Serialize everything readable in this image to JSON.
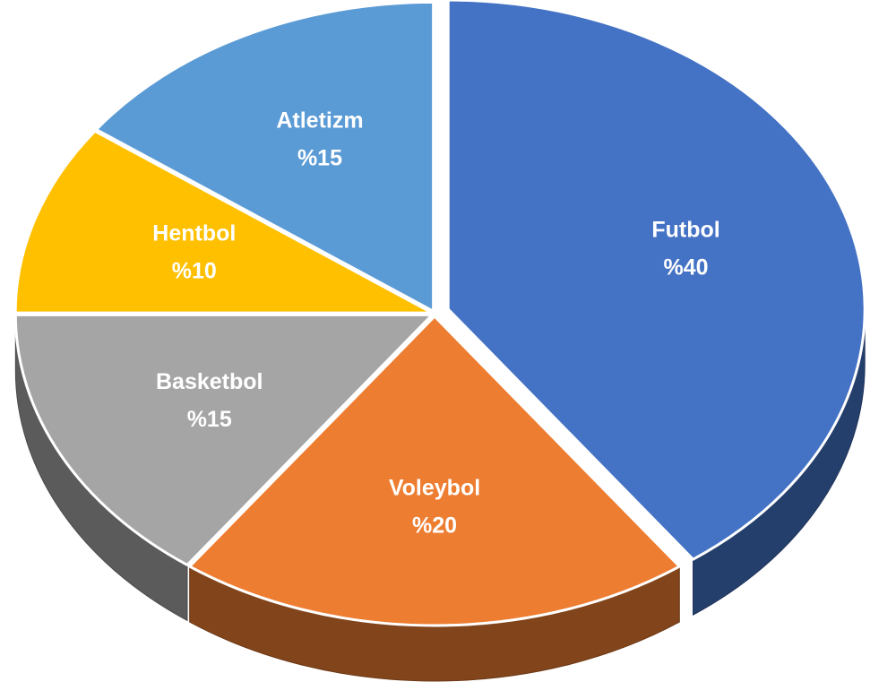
{
  "chart_data": {
    "type": "pie",
    "categories": [
      "Futbol",
      "Voleybol",
      "Basketbol",
      "Hentbol",
      "Atletizm"
    ],
    "values": [
      40,
      20,
      15,
      10,
      15
    ],
    "value_labels": [
      "%40",
      "%20",
      "%15",
      "%10",
      "%15"
    ],
    "colors": [
      "#4472c4",
      "#ed7d31",
      "#a5a5a5",
      "#ffc000",
      "#5b9bd5"
    ]
  }
}
